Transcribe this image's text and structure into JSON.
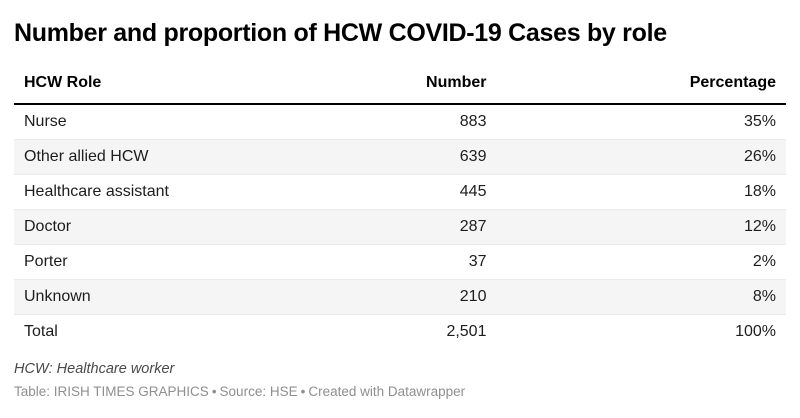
{
  "title": "Number and proportion of HCW COVID-19 Cases by role",
  "chart_data": {
    "type": "table",
    "title": "Number and proportion of HCW COVID-19 Cases by role",
    "columns": [
      {
        "label": "HCW Role",
        "align": "left"
      },
      {
        "label": "Number",
        "align": "right"
      },
      {
        "label": "Percentage",
        "align": "right"
      }
    ],
    "rows": [
      {
        "role": "Nurse",
        "number": "883",
        "percentage": "35%"
      },
      {
        "role": "Other allied HCW",
        "number": "639",
        "percentage": "26%"
      },
      {
        "role": "Healthcare assistant",
        "number": "445",
        "percentage": "18%"
      },
      {
        "role": "Doctor",
        "number": "287",
        "percentage": "12%"
      },
      {
        "role": "Porter",
        "number": "37",
        "percentage": "2%"
      },
      {
        "role": "Unknown",
        "number": "210",
        "percentage": "8%"
      },
      {
        "role": "Total",
        "number": "2,501",
        "percentage": "100%"
      }
    ],
    "numeric": {
      "categories": [
        "Nurse",
        "Other allied HCW",
        "Healthcare assistant",
        "Doctor",
        "Porter",
        "Unknown"
      ],
      "numbers": [
        883,
        639,
        445,
        287,
        37,
        210
      ],
      "percentages": [
        35,
        26,
        18,
        12,
        2,
        8
      ],
      "total_number": 2501,
      "total_percentage": 100
    },
    "layout_hints": {
      "zebra_striping": true,
      "striped_rows": [
        "Other allied HCW",
        "Doctor",
        "Unknown"
      ]
    }
  },
  "footnote": "HCW: Healthcare worker",
  "attribution": {
    "table_credit": "Table: IRISH TIMES GRAPHICS",
    "separator": "•",
    "source": "Source: HSE",
    "created": "Created with Datawrapper"
  },
  "colors": {
    "background": "#ffffff",
    "title_text": "#000000",
    "header_text": "#000000",
    "body_text": "#1d1d1d",
    "zebra_row": "#f5f5f5",
    "row_divider": "#ebebeb",
    "header_rule": "#000000",
    "footnote_text": "#494949",
    "attribution_text": "#8f8f8f"
  }
}
